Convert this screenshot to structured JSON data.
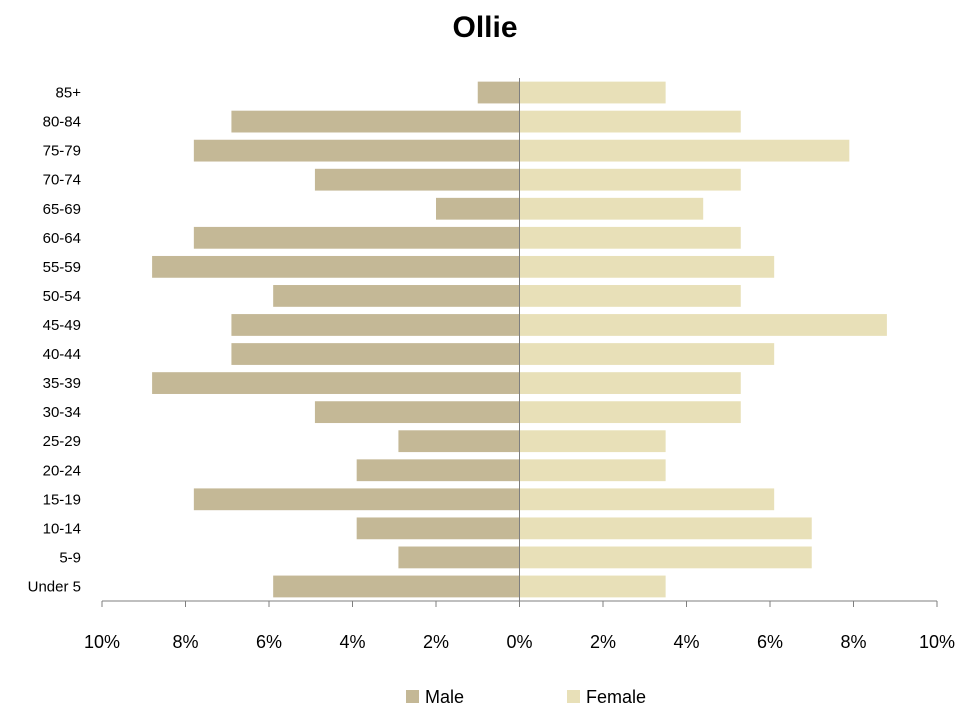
{
  "chart_data": {
    "type": "bar",
    "orientation": "horizontal",
    "layout": "population-pyramid",
    "title": "Ollie",
    "categories": [
      "Under 5",
      "5-9",
      "10-14",
      "15-19",
      "20-24",
      "25-29",
      "30-34",
      "35-39",
      "40-44",
      "45-49",
      "50-54",
      "55-59",
      "60-64",
      "65-69",
      "70-74",
      "75-79",
      "80-84",
      "85+"
    ],
    "series": [
      {
        "name": "Male",
        "color": "#c4b896",
        "direction": "left",
        "values": [
          5.9,
          2.9,
          3.9,
          7.8,
          3.9,
          2.9,
          4.9,
          8.8,
          6.9,
          6.9,
          5.9,
          8.8,
          7.8,
          2.0,
          4.9,
          7.8,
          6.9,
          1.0
        ]
      },
      {
        "name": "Female",
        "color": "#e8e0b8",
        "direction": "right",
        "values": [
          3.5,
          7.0,
          7.0,
          6.1,
          3.5,
          3.5,
          5.3,
          5.3,
          6.1,
          8.8,
          5.3,
          6.1,
          5.3,
          4.4,
          5.3,
          7.9,
          5.3,
          3.5
        ]
      }
    ],
    "xlim": [
      -10,
      10
    ],
    "x_ticks": [
      -10,
      -8,
      -6,
      -4,
      -2,
      0,
      2,
      4,
      6,
      8,
      10
    ],
    "x_tick_labels": [
      "10%",
      "8%",
      "6%",
      "4%",
      "2%",
      "0%",
      "2%",
      "4%",
      "6%",
      "8%",
      "10%"
    ],
    "grid": false,
    "legend_position": "bottom"
  }
}
